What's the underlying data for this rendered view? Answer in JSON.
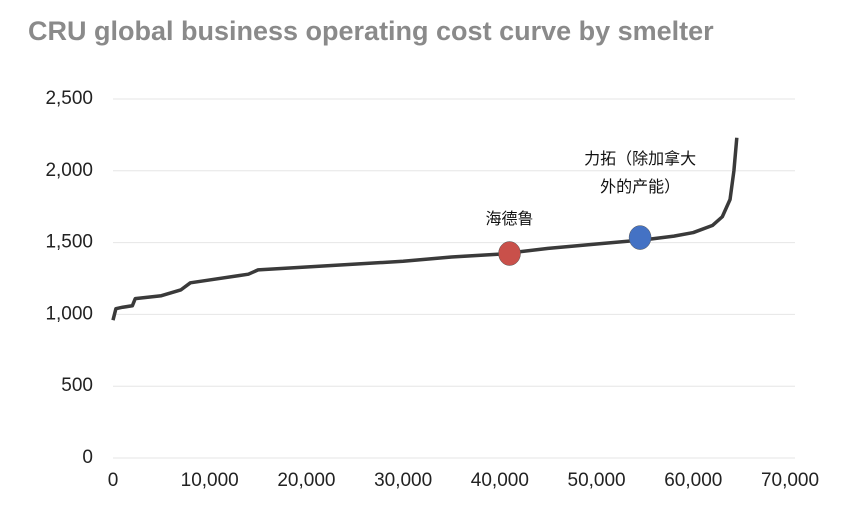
{
  "chart_data": {
    "type": "line",
    "title": "CRU global business operating cost curve by smelter",
    "x": [
      0,
      300,
      1000,
      2000,
      2300,
      5000,
      7000,
      8000,
      10000,
      13000,
      14000,
      15000,
      20000,
      25000,
      30000,
      35000,
      40000,
      45000,
      50000,
      55000,
      58000,
      60000,
      62000,
      63000,
      63800,
      64200,
      64500
    ],
    "series": [
      {
        "name": "cost curve",
        "color": "#3a3a3a",
        "values": [
          960,
          1040,
          1050,
          1060,
          1110,
          1130,
          1170,
          1220,
          1240,
          1270,
          1280,
          1310,
          1330,
          1350,
          1370,
          1400,
          1420,
          1460,
          1490,
          1520,
          1545,
          1570,
          1620,
          1680,
          1800,
          2000,
          2230
        ]
      }
    ],
    "annotations": [
      {
        "label": [
          "海德鲁"
        ],
        "x": 41000,
        "y": 1424,
        "color": "#c9504a"
      },
      {
        "label": [
          "力拓（除加拿大",
          "外的产能）"
        ],
        "x": 54500,
        "y": 1535,
        "color": "#4472c4"
      }
    ],
    "xlim": [
      0,
      70000
    ],
    "xticks": [
      0,
      {
        "value": 10000,
        "label": "10,000"
      },
      {
        "value": 20000,
        "label": "20,000"
      },
      {
        "value": 30000,
        "label": "30,000"
      },
      {
        "value": 40000,
        "label": "40,000"
      },
      {
        "value": 50000,
        "label": "50,000"
      },
      {
        "value": 60000,
        "label": "60,000"
      },
      {
        "value": 70000,
        "label": "70,000"
      }
    ],
    "ylim": [
      0,
      2500
    ],
    "yticks": [
      0,
      500,
      {
        "value": 1000,
        "label": "1,000"
      },
      {
        "value": 1500,
        "label": "1,500"
      },
      {
        "value": 2000,
        "label": "2,000"
      },
      {
        "value": 2500,
        "label": "2,500"
      }
    ],
    "grid": true
  }
}
